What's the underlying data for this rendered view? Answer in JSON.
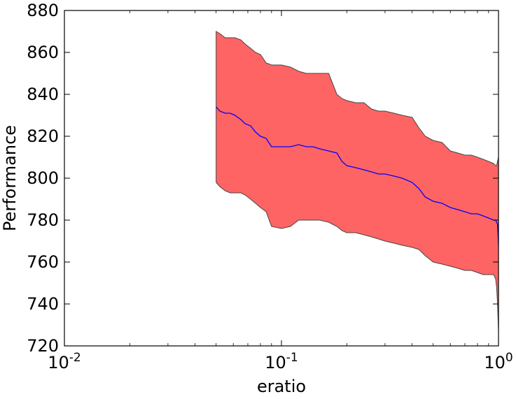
{
  "chart_data": {
    "type": "area",
    "xlabel": "eratio",
    "ylabel": "Performance",
    "xscale": "log",
    "xlim": [
      0.01,
      1
    ],
    "ylim": [
      720,
      880
    ],
    "grid": false,
    "x_ticks": [
      {
        "value": 0.01,
        "base": "10",
        "exp": "-2"
      },
      {
        "value": 0.1,
        "base": "10",
        "exp": "-1"
      },
      {
        "value": 1,
        "base": "10",
        "exp": "0"
      }
    ],
    "y_ticks": [
      "720",
      "740",
      "760",
      "780",
      "800",
      "820",
      "840",
      "860",
      "880"
    ],
    "colors": {
      "band_fill": "#ff6464",
      "band_edge": "#444444",
      "mean_line": "#0000ff",
      "axes": "#000000"
    },
    "x": [
      0.05,
      0.052,
      0.055,
      0.058,
      0.061,
      0.065,
      0.068,
      0.072,
      0.076,
      0.08,
      0.085,
      0.09,
      0.1,
      0.11,
      0.12,
      0.13,
      0.14,
      0.15,
      0.165,
      0.18,
      0.19,
      0.2,
      0.22,
      0.24,
      0.26,
      0.28,
      0.3,
      0.33,
      0.36,
      0.4,
      0.43,
      0.46,
      0.5,
      0.55,
      0.6,
      0.65,
      0.7,
      0.75,
      0.8,
      0.85,
      0.9,
      0.95,
      0.97,
      0.98,
      0.99,
      1.0
    ],
    "series": [
      {
        "label": "upper",
        "values": [
          870,
          869,
          867,
          867,
          867,
          866,
          864,
          862,
          860,
          859,
          855,
          854,
          854,
          853,
          851,
          850,
          850,
          850,
          850,
          840,
          838,
          837,
          836,
          836,
          833,
          832,
          832,
          831,
          830,
          829,
          824,
          820,
          818,
          817,
          813,
          812,
          811,
          811,
          810,
          809,
          808,
          807,
          806,
          806,
          808,
          810
        ]
      },
      {
        "label": "mean",
        "values": [
          834,
          832,
          831,
          831,
          830,
          828,
          826,
          825,
          822,
          820,
          819,
          815,
          815,
          815,
          816,
          815,
          815,
          814,
          813,
          812,
          808,
          806,
          805,
          804,
          803,
          802,
          802,
          801,
          800,
          798,
          795,
          791,
          789,
          788,
          786,
          785,
          784,
          783,
          783,
          782,
          781,
          780,
          780,
          779,
          778,
          768
        ]
      },
      {
        "label": "lower",
        "values": [
          798,
          796,
          794,
          793,
          793,
          793,
          792,
          790,
          788,
          786,
          784,
          777,
          776,
          777,
          780,
          780,
          780,
          780,
          779,
          777,
          775,
          774,
          774,
          773,
          772,
          771,
          770,
          769,
          768,
          767,
          766,
          763,
          760,
          759,
          758,
          757,
          756,
          756,
          755,
          754,
          754,
          754,
          752,
          748,
          740,
          727
        ]
      }
    ]
  }
}
